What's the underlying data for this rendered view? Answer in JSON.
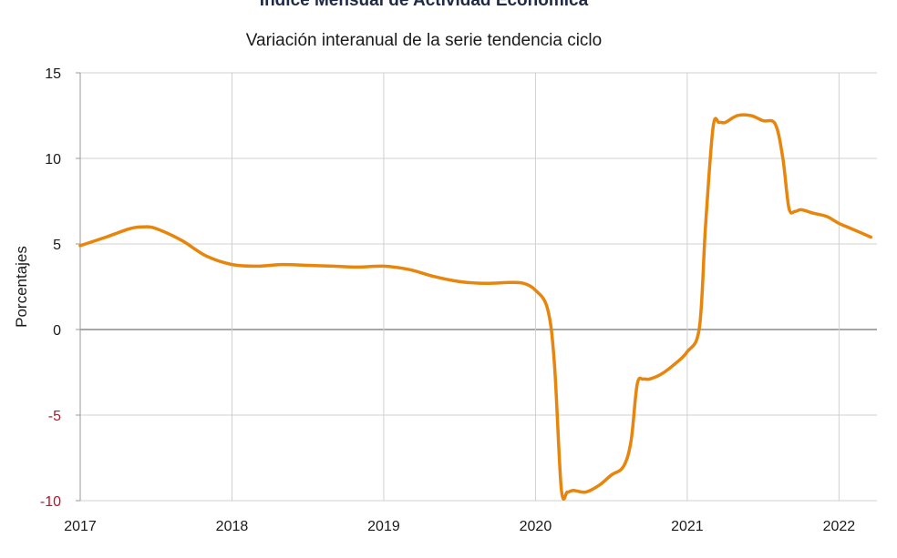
{
  "chart_data": {
    "type": "line",
    "title": "Índice Mensual de  Actividad Económica",
    "subtitle": "Variación interanual de la serie tendencia ciclo",
    "ylabel": "Porcentajes",
    "xlabel": "",
    "ylim": [
      -10,
      15
    ],
    "yticks": [
      15,
      10,
      5,
      0,
      -5,
      -10
    ],
    "xlim": [
      2017,
      2022.25
    ],
    "xticks": [
      "2017",
      "2018",
      "2019",
      "2020",
      "2021",
      "2022"
    ],
    "grid": true,
    "line_color": "#e8850c",
    "negative_tick_color": "#c0102a",
    "series": [
      {
        "x": [
          2017.0,
          2017.17,
          2017.33,
          2017.42,
          2017.5,
          2017.67,
          2017.83,
          2018.0,
          2018.17,
          2018.33,
          2018.5,
          2018.67,
          2018.83,
          2019.0,
          2019.17,
          2019.33,
          2019.5,
          2019.67,
          2019.83,
          2019.92,
          2020.0,
          2020.08,
          2020.125,
          2020.17,
          2020.21,
          2020.25,
          2020.33,
          2020.42,
          2020.5,
          2020.58,
          2020.63,
          2020.67,
          2020.71,
          2020.75,
          2020.83,
          2020.92,
          2021.0,
          2021.08,
          2021.12,
          2021.17,
          2021.21,
          2021.25,
          2021.33,
          2021.42,
          2021.5,
          2021.58,
          2021.63,
          2021.67,
          2021.71,
          2021.75,
          2021.83,
          2021.92,
          2022.0,
          2022.08,
          2022.21
        ],
        "values": [
          4.9,
          5.4,
          5.9,
          6.0,
          5.9,
          5.2,
          4.3,
          3.8,
          3.7,
          3.8,
          3.75,
          3.7,
          3.65,
          3.7,
          3.5,
          3.1,
          2.8,
          2.7,
          2.75,
          2.7,
          2.3,
          1.2,
          -2.0,
          -9.3,
          -9.5,
          -9.4,
          -9.5,
          -9.1,
          -8.5,
          -8.0,
          -6.5,
          -3.2,
          -2.9,
          -2.9,
          -2.6,
          -2.0,
          -1.3,
          0.1,
          6.0,
          11.8,
          12.1,
          12.1,
          12.5,
          12.5,
          12.2,
          12.0,
          10.0,
          7.1,
          6.9,
          7.0,
          6.8,
          6.6,
          6.2,
          5.9,
          5.4
        ]
      }
    ]
  }
}
